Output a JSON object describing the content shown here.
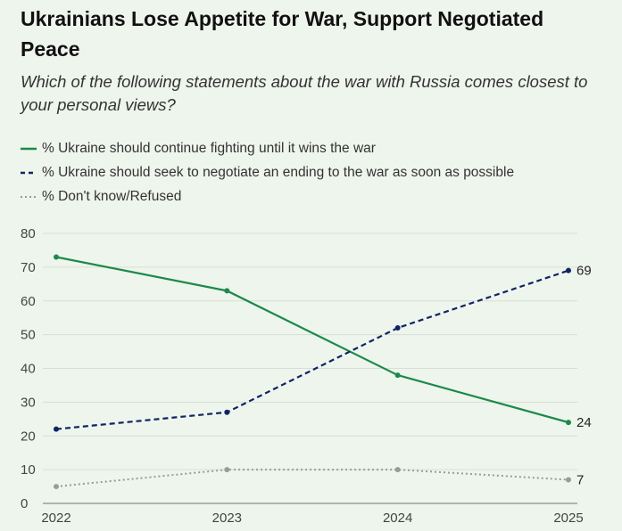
{
  "title": "Ukrainians Lose Appetite for War, Support Negotiated Peace",
  "subtitle": "Which of the following statements about the war with Russia comes closest to your personal views?",
  "colors": {
    "fight": "#1b8a4a",
    "negotiate": "#0f2466",
    "dontknow": "#9a9a9a",
    "grid": "#d7dfd5",
    "background": "#eef5ec"
  },
  "chart_data": {
    "type": "line",
    "x": [
      "2022",
      "2023",
      "2024",
      "2025"
    ],
    "ylim": [
      0,
      80
    ],
    "yticks": [
      "0",
      "10",
      "20",
      "30",
      "40",
      "50",
      "60",
      "70",
      "80"
    ],
    "grid": true,
    "legend_position": "top-left",
    "series": [
      {
        "key": "fight",
        "name": "% Ukraine should continue fighting until it wins the war",
        "values": [
          73,
          63,
          38,
          24
        ],
        "style": "solid",
        "end_label": "24"
      },
      {
        "key": "negotiate",
        "name": "% Ukraine should seek to negotiate an ending to the war as soon as possible",
        "values": [
          22,
          27,
          52,
          69
        ],
        "style": "dashed",
        "end_label": "69"
      },
      {
        "key": "dontknow",
        "name": "% Don't know/Refused",
        "values": [
          5,
          10,
          10,
          7
        ],
        "style": "dotted",
        "end_label": "7"
      }
    ]
  }
}
